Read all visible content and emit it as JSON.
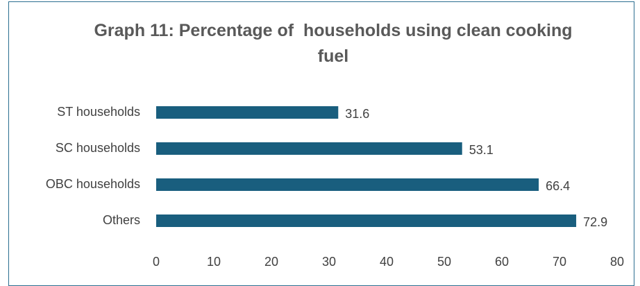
{
  "chart_data": {
    "type": "bar",
    "orientation": "horizontal",
    "title": "Graph 11: Percentage of  households using clean cooking fuel",
    "categories": [
      "ST households",
      "SC households",
      "OBC households",
      "Others"
    ],
    "values": [
      31.6,
      53.1,
      66.4,
      72.9
    ],
    "color": "#195e7e",
    "xlim": [
      0,
      80
    ],
    "xticks": [
      0,
      10,
      20,
      30,
      40,
      50,
      60,
      70,
      80
    ],
    "grid": false
  }
}
